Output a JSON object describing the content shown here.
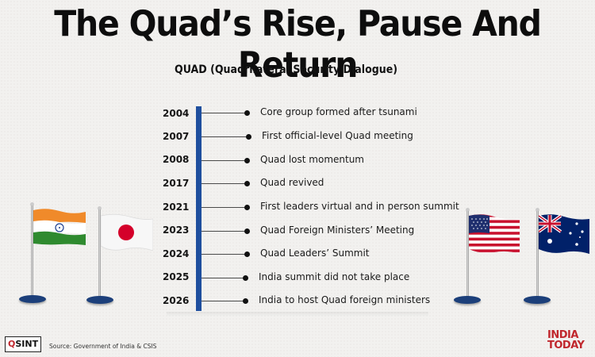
{
  "title": "The Quad’s Rise, Pause And Return",
  "subtitle": "QUAD (Quadrilateral Security Dialogue)",
  "timeline": [
    {
      "year": "2004",
      "event": "Core group formed after tsunami"
    },
    {
      "year": "2007",
      "event": "First official-level Quad meeting"
    },
    {
      "year": "2008",
      "event": "Quad lost momentum"
    },
    {
      "year": "2017",
      "event": "Quad revived"
    },
    {
      "year": "2021",
      "event": "First leaders virtual and in person summit"
    },
    {
      "year": "2023",
      "event": "Quad Foreign Ministers’ Meeting"
    },
    {
      "year": "2024",
      "event": "Quad Leaders’ Summit"
    },
    {
      "year": "2025",
      "event": "India summit did not take place"
    },
    {
      "year": "2026",
      "event": "India to host Quad foreign ministers"
    }
  ],
  "flags": [
    {
      "name": "india-flag-icon"
    },
    {
      "name": "japan-flag-icon"
    },
    {
      "name": "usa-flag-icon"
    },
    {
      "name": "australia-flag-icon"
    }
  ],
  "footer": {
    "source": "Source: Government of India & CSIS",
    "logo_left_q": "Q",
    "logo_left_rest": "SINT",
    "logo_right_line1": "INDIA",
    "logo_right_line2": "TODAY"
  },
  "colors": {
    "timeline_bar": "#1f4f9e",
    "brand_red": "#c0272d",
    "flag_base": "#1c3f7a"
  }
}
